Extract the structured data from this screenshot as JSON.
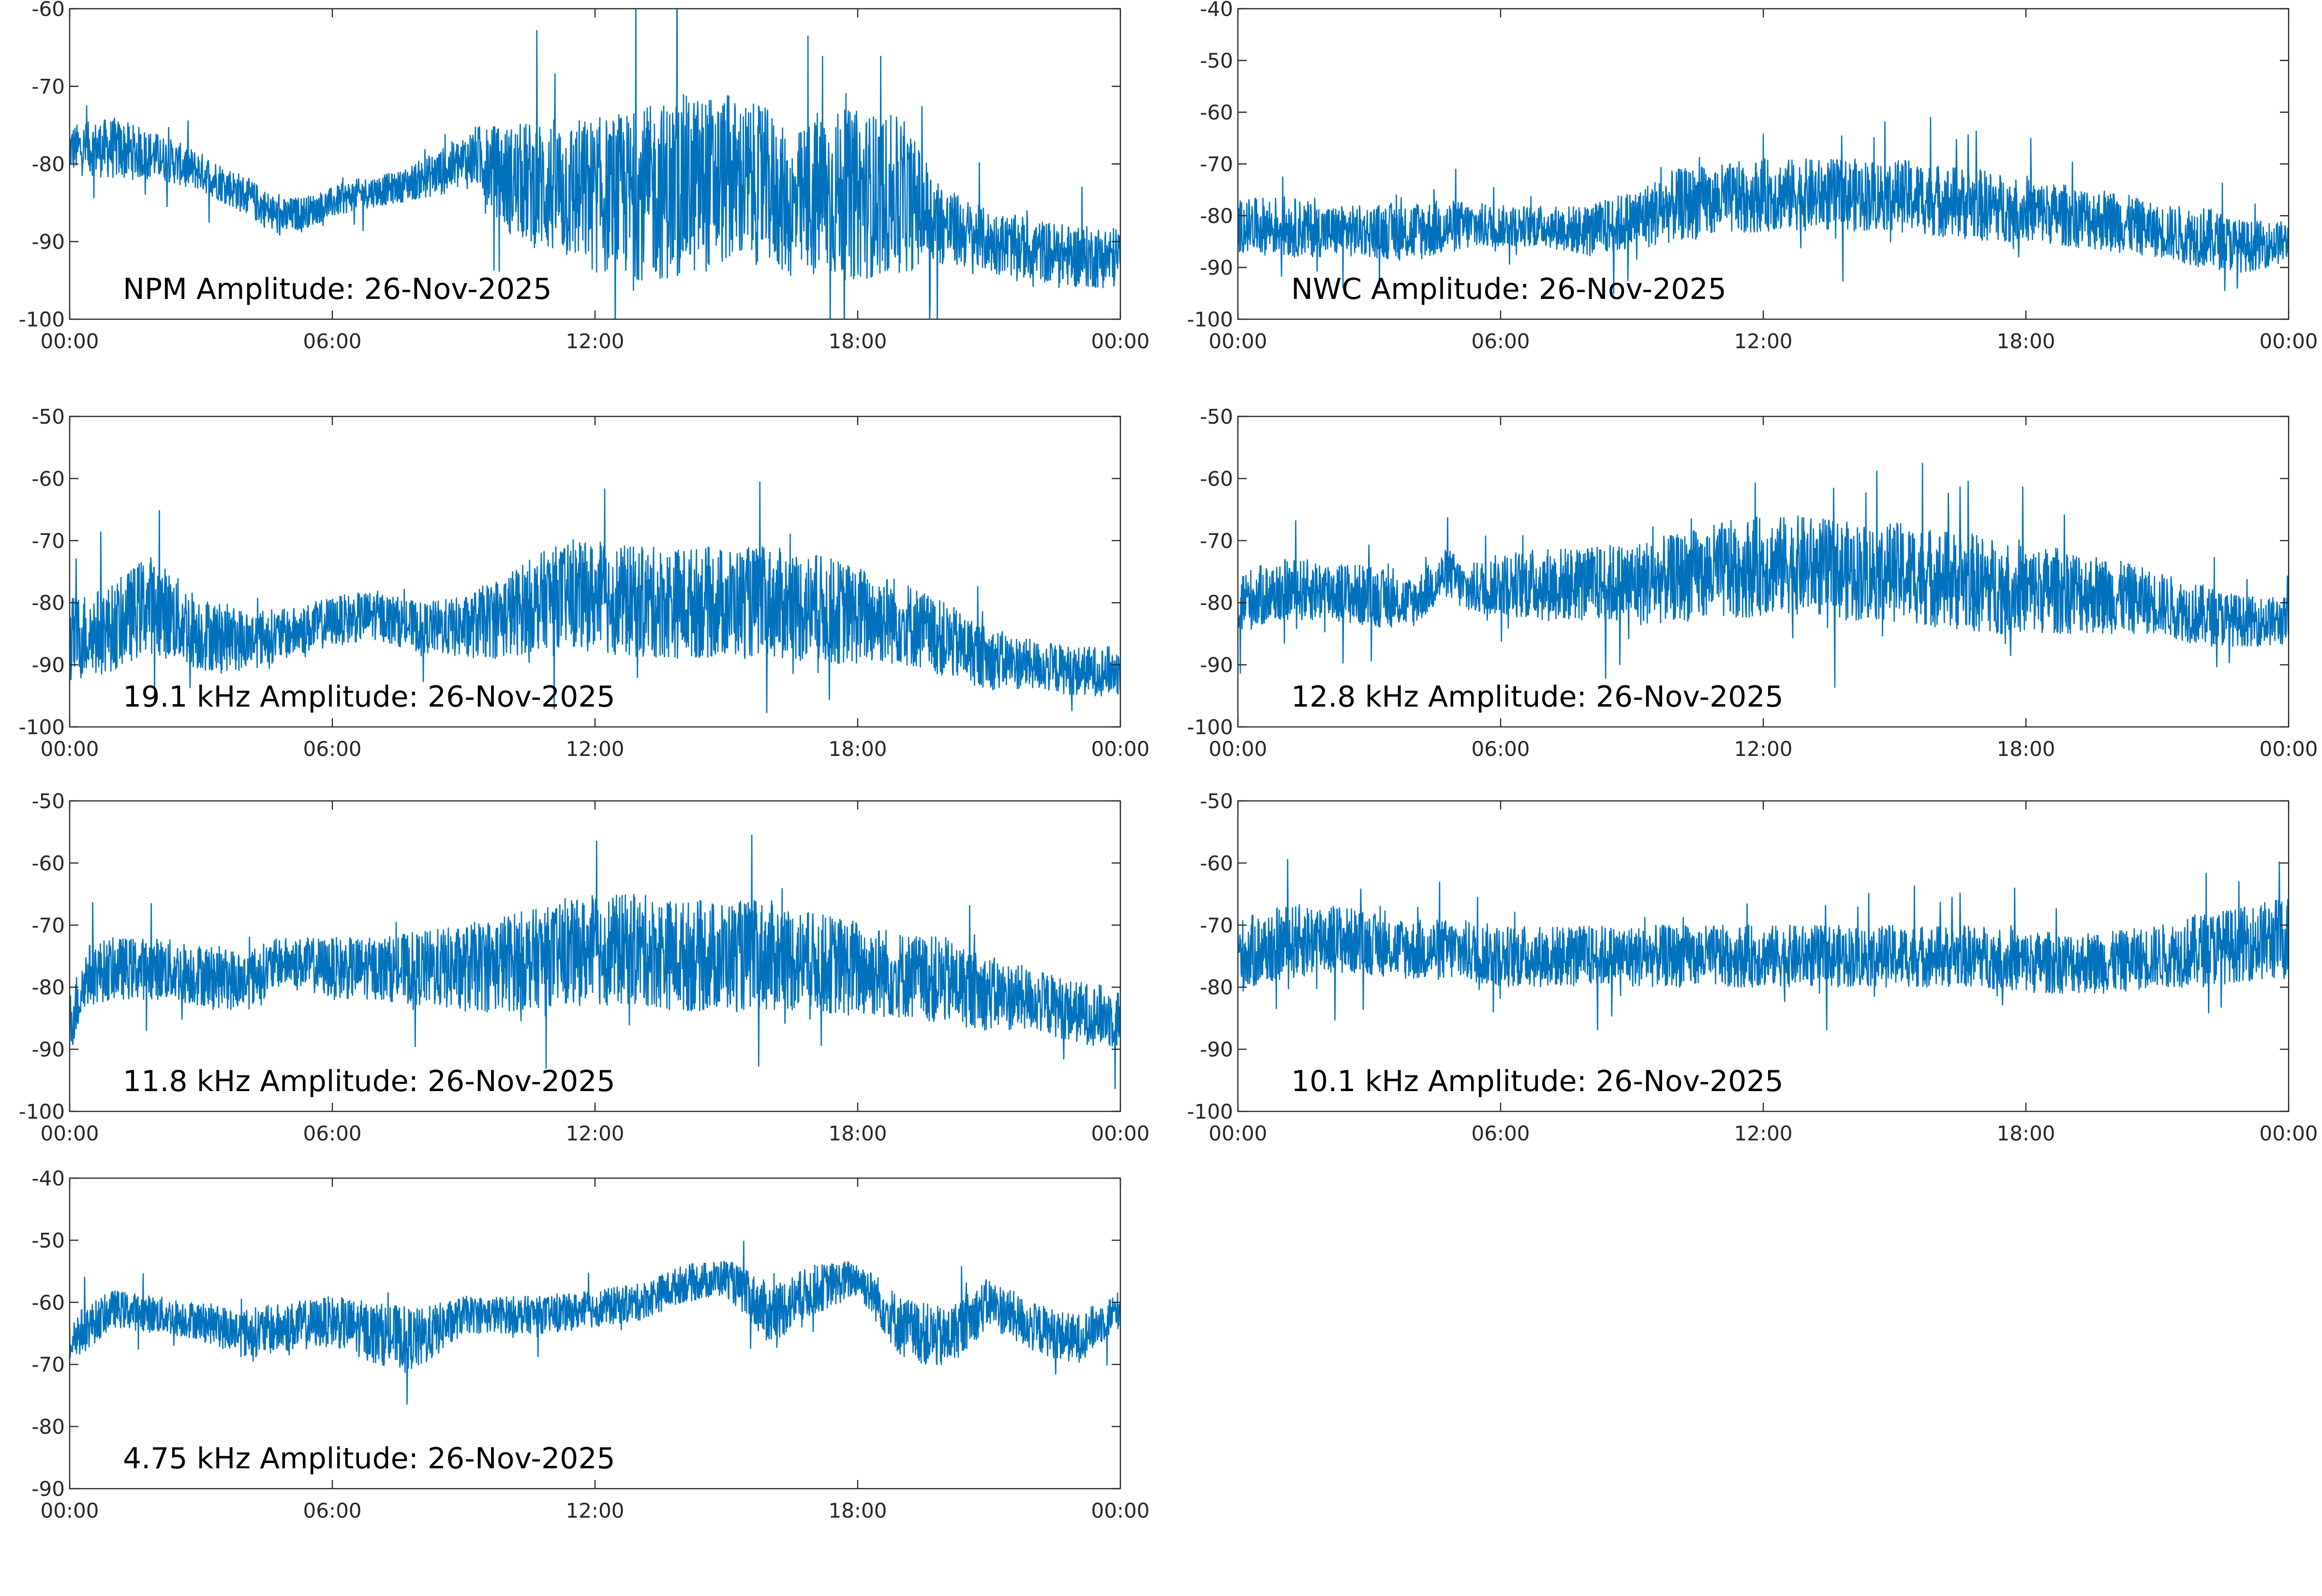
{
  "figure": {
    "line_color": "#0072BD"
  },
  "chart_data": [
    {
      "type": "line",
      "title": "NPM Amplitude: 26-Nov-2025",
      "ylim": [
        -100,
        -60
      ],
      "yticks": [
        -60,
        -70,
        -80,
        -90,
        -100
      ],
      "xticks": [
        "00:00",
        "06:00",
        "12:00",
        "18:00",
        "00:00"
      ],
      "xlim_hours": [
        0,
        24
      ],
      "series": [
        {
          "name": "NPM Amplitude",
          "x_hours": [
            0,
            1,
            2,
            3,
            4,
            4.8,
            5.5,
            6.5,
            7.5,
            8.5,
            9.3,
            10,
            11,
            12,
            13,
            14,
            15,
            16,
            16.5,
            17,
            18,
            19,
            20,
            21,
            22,
            23,
            24
          ],
          "center": [
            -78,
            -78,
            -79,
            -81,
            -84,
            -87,
            -86,
            -84,
            -83,
            -81,
            -79,
            -82,
            -83,
            -84,
            -84,
            -83,
            -82,
            -83,
            -86,
            -84,
            -84,
            -84,
            -88,
            -90,
            -91,
            -92,
            -92
          ],
          "spread": [
            3,
            4,
            3,
            2.5,
            2.5,
            2.5,
            2,
            2,
            2,
            3,
            4,
            7,
            9,
            10,
            11,
            12,
            11,
            10,
            9,
            11,
            11,
            10,
            5,
            4,
            4,
            4,
            4
          ]
        }
      ]
    },
    {
      "type": "line",
      "title": "NWC Amplitude: 26-Nov-2025",
      "ylim": [
        -100,
        -40
      ],
      "yticks": [
        -40,
        -50,
        -60,
        -70,
        -80,
        -90,
        -100
      ],
      "xticks": [
        "00:00",
        "06:00",
        "12:00",
        "18:00",
        "00:00"
      ],
      "xlim_hours": [
        0,
        24
      ],
      "series": [
        {
          "name": "NWC Amplitude",
          "x_hours": [
            0,
            1,
            2,
            3,
            4,
            5,
            6,
            7,
            8,
            9,
            10,
            11,
            12,
            13,
            14,
            15,
            16,
            17,
            18,
            19,
            20,
            21,
            22,
            23,
            24
          ],
          "center": [
            -82,
            -82,
            -83,
            -83,
            -83,
            -82,
            -82,
            -82,
            -83,
            -81,
            -78,
            -77,
            -76,
            -76,
            -76,
            -76,
            -77,
            -78,
            -79,
            -80,
            -81,
            -83,
            -84,
            -86,
            -85
          ],
          "spread": [
            5,
            6,
            5,
            5,
            6,
            5,
            4,
            4,
            5,
            6,
            7,
            7,
            7,
            7,
            7,
            7,
            7,
            7,
            6,
            6,
            6,
            5,
            6,
            5,
            4
          ]
        }
      ]
    },
    {
      "type": "line",
      "title": "19.1 kHz Amplitude: 26-Nov-2025",
      "ylim": [
        -100,
        -50
      ],
      "yticks": [
        -50,
        -60,
        -70,
        -80,
        -90,
        -100
      ],
      "xticks": [
        "00:00",
        "06:00",
        "12:00",
        "18:00",
        "00:00"
      ],
      "xlim_hours": [
        0,
        24
      ],
      "series": [
        {
          "name": "19.1 kHz Amplitude",
          "x_hours": [
            0,
            1,
            1.8,
            3,
            4,
            5,
            6,
            7,
            8,
            9,
            10,
            11,
            12,
            13,
            14,
            15,
            16,
            17,
            18,
            19,
            20,
            21,
            22,
            23,
            24
          ],
          "center": [
            -86,
            -84,
            -80,
            -85,
            -86,
            -85,
            -83,
            -82,
            -84,
            -84,
            -82,
            -79,
            -79,
            -80,
            -80,
            -80,
            -80,
            -81,
            -82,
            -83,
            -86,
            -89,
            -90,
            -91,
            -91
          ],
          "spread": [
            7,
            7,
            8,
            6,
            5,
            4,
            4,
            4,
            4,
            5,
            7,
            8,
            9,
            9,
            9,
            9,
            9,
            9,
            8,
            7,
            6,
            5,
            4,
            4,
            4
          ]
        }
      ]
    },
    {
      "type": "line",
      "title": "12.8 kHz Amplitude: 26-Nov-2025",
      "ylim": [
        -100,
        -50
      ],
      "yticks": [
        -50,
        -60,
        -70,
        -80,
        -90,
        -100
      ],
      "xticks": [
        "00:00",
        "06:00",
        "12:00",
        "18:00",
        "00:00"
      ],
      "xlim_hours": [
        0,
        24
      ],
      "series": [
        {
          "name": "12.8 kHz Amplitude",
          "x_hours": [
            0,
            1,
            2,
            3,
            4,
            4.8,
            5.2,
            6,
            7,
            8,
            9,
            10,
            11,
            12,
            13,
            14,
            15,
            16,
            17,
            18,
            19,
            20,
            21,
            22,
            23,
            24
          ],
          "center": [
            -80,
            -78,
            -78,
            -79,
            -80,
            -75,
            -78,
            -77,
            -77,
            -77,
            -77,
            -76,
            -75,
            -74,
            -74,
            -75,
            -75,
            -76,
            -77,
            -78,
            -78,
            -79,
            -80,
            -82,
            -83,
            -83
          ],
          "spread": [
            5,
            5,
            5,
            5,
            4,
            4,
            4,
            5,
            6,
            6,
            7,
            7,
            8,
            8,
            8,
            8,
            8,
            8,
            8,
            7,
            7,
            6,
            5,
            5,
            4,
            4
          ]
        }
      ]
    },
    {
      "type": "line",
      "title": "11.8 kHz Amplitude: 26-Nov-2025",
      "ylim": [
        -100,
        -50
      ],
      "yticks": [
        -50,
        -60,
        -70,
        -80,
        -90,
        -100
      ],
      "xticks": [
        "00:00",
        "06:00",
        "12:00",
        "18:00",
        "00:00"
      ],
      "xlim_hours": [
        0,
        24
      ],
      "series": [
        {
          "name": "11.8 kHz Amplitude",
          "x_hours": [
            0,
            0.4,
            1,
            2,
            3,
            4,
            4.8,
            5.2,
            6,
            7,
            8,
            9,
            10,
            11,
            12,
            13,
            14,
            15,
            16,
            17,
            18,
            19,
            20,
            21,
            22,
            23,
            24
          ],
          "center": [
            -86,
            -78,
            -77,
            -77,
            -78,
            -79,
            -76,
            -76,
            -77,
            -77,
            -77,
            -77,
            -76,
            -75,
            -74,
            -74,
            -75,
            -75,
            -75,
            -76,
            -77,
            -78,
            -79,
            -81,
            -82,
            -84,
            -85
          ],
          "spread": [
            5,
            5,
            5,
            5,
            5,
            5,
            4,
            4,
            5,
            5,
            6,
            7,
            8,
            8,
            9,
            9,
            9,
            9,
            9,
            8,
            8,
            7,
            7,
            6,
            5,
            5,
            5
          ]
        }
      ]
    },
    {
      "type": "line",
      "title": "10.1 kHz Amplitude: 26-Nov-2025",
      "ylim": [
        -100,
        -50
      ],
      "yticks": [
        -50,
        -60,
        -70,
        -80,
        -90,
        -100
      ],
      "xticks": [
        "00:00",
        "06:00",
        "12:00",
        "18:00",
        "00:00"
      ],
      "xlim_hours": [
        0,
        24
      ],
      "series": [
        {
          "name": "10.1 kHz Amplitude",
          "x_hours": [
            0,
            1,
            2,
            3,
            4,
            5,
            6,
            7,
            8,
            9,
            10,
            11,
            12,
            13,
            14,
            15,
            16,
            17,
            18,
            19,
            20,
            21,
            22,
            23,
            24
          ],
          "center": [
            -75,
            -73,
            -72,
            -73,
            -74,
            -74,
            -75,
            -75,
            -75,
            -75,
            -75,
            -75,
            -75,
            -75,
            -75,
            -75,
            -75,
            -75,
            -76,
            -76,
            -76,
            -75,
            -74,
            -73,
            -72
          ],
          "spread": [
            6,
            6,
            6,
            5,
            5,
            5,
            5,
            5,
            5,
            5,
            5,
            5,
            5,
            5,
            5,
            5,
            5,
            5,
            5,
            5,
            5,
            5,
            6,
            6,
            7
          ]
        }
      ]
    },
    {
      "type": "line",
      "title": "4.75 kHz Amplitude: 26-Nov-2025",
      "ylim": [
        -90,
        -40
      ],
      "yticks": [
        -40,
        -50,
        -60,
        -70,
        -80,
        -90
      ],
      "xticks": [
        "00:00",
        "06:00",
        "12:00",
        "18:00",
        "00:00"
      ],
      "xlim_hours": [
        0,
        24
      ],
      "series": [
        {
          "name": "4.75 kHz Amplitude",
          "x_hours": [
            0,
            1,
            2,
            3,
            4,
            5,
            6,
            7,
            8,
            9,
            10,
            11,
            12,
            13,
            14,
            15,
            16,
            17,
            18,
            19,
            20,
            21,
            22,
            23,
            24
          ],
          "center": [
            -66,
            -61,
            -62,
            -63,
            -65,
            -64,
            -63,
            -65,
            -66,
            -62,
            -62,
            -62,
            -61,
            -60,
            -57,
            -56,
            -62,
            -58,
            -56,
            -64,
            -66,
            -60,
            -64,
            -66,
            -61
          ],
          "spread": [
            4,
            3,
            3,
            3,
            4,
            4,
            4,
            5,
            5,
            3,
            3,
            3,
            3,
            3,
            3,
            3,
            5,
            4,
            3,
            5,
            5,
            4,
            4,
            4,
            3
          ]
        }
      ]
    }
  ]
}
